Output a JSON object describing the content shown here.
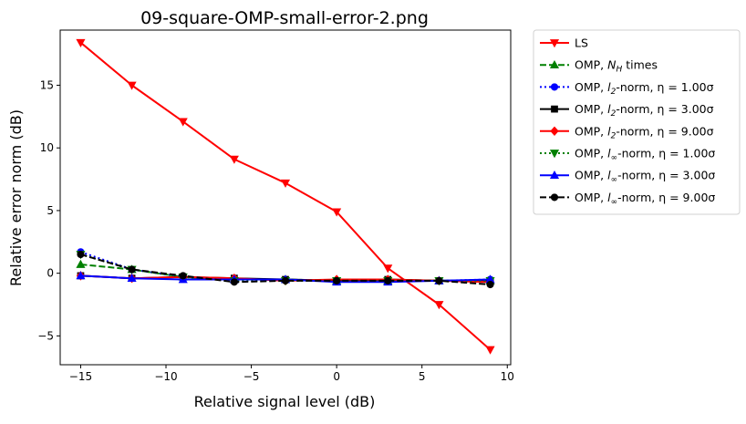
{
  "chart_data": {
    "type": "line",
    "title": "09-square-OMP-small-error-2.png",
    "xlabel": "Relative signal level (dB)",
    "ylabel": "Relative error norm (dB)",
    "xlim": [
      -16.2,
      10.2
    ],
    "ylim": [
      -7.3,
      19.4
    ],
    "xticks": [
      -15,
      -10,
      -5,
      0,
      5,
      10
    ],
    "yticks": [
      -5,
      0,
      5,
      10,
      15
    ],
    "xtick_labels": [
      "−15",
      "−10",
      "−5",
      "0",
      "5",
      "10"
    ],
    "ytick_labels": [
      "−5",
      "0",
      "5",
      "10",
      "15"
    ],
    "grid": false,
    "legend_position": "outside-right",
    "x": [
      -15,
      -12,
      -9,
      -6,
      -3,
      0,
      3,
      6,
      9
    ],
    "series": [
      {
        "name": "LS",
        "color": "#ff0000",
        "dash": "solid",
        "marker": "triangle-down",
        "values": [
          18.4,
          15.0,
          12.1,
          9.1,
          7.2,
          4.9,
          0.4,
          -2.5,
          -6.1
        ]
      },
      {
        "name": "OMP, N_H times",
        "color": "#008000",
        "dash": "dashed",
        "marker": "triangle-up",
        "values": [
          0.7,
          0.3,
          -0.3,
          -0.5,
          -0.5,
          -0.6,
          -0.6,
          -0.6,
          -0.6
        ]
      },
      {
        "name": "OMP, l_2-norm, η = 1.00σ",
        "color": "#0000ff",
        "dash": "dotted",
        "marker": "circle",
        "values": [
          1.7,
          0.3,
          -0.3,
          -0.5,
          -0.5,
          -0.6,
          -0.6,
          -0.6,
          -0.5
        ]
      },
      {
        "name": "OMP, l_2-norm, η = 3.00σ",
        "color": "#000000",
        "dash": "solid",
        "marker": "square",
        "values": [
          -0.2,
          -0.4,
          -0.3,
          -0.4,
          -0.5,
          -0.6,
          -0.5,
          -0.6,
          -0.6
        ]
      },
      {
        "name": "OMP, l_2-norm, η = 9.00σ",
        "color": "#ff0000",
        "dash": "solid",
        "marker": "diamond",
        "values": [
          -0.2,
          -0.4,
          -0.3,
          -0.4,
          -0.6,
          -0.5,
          -0.5,
          -0.6,
          -0.7
        ]
      },
      {
        "name": "OMP, l_∞-norm, η = 1.00σ",
        "color": "#008000",
        "dash": "dotted",
        "marker": "triangle-down",
        "values": [
          1.5,
          0.3,
          -0.3,
          -0.6,
          -0.6,
          -0.6,
          -0.6,
          -0.6,
          -0.6
        ]
      },
      {
        "name": "OMP, l_∞-norm, η = 3.00σ",
        "color": "#0000ff",
        "dash": "solid",
        "marker": "triangle-up",
        "values": [
          -0.2,
          -0.4,
          -0.5,
          -0.5,
          -0.5,
          -0.7,
          -0.7,
          -0.6,
          -0.5
        ]
      },
      {
        "name": "OMP, l_∞-norm, η = 9.00σ",
        "color": "#000000",
        "dash": "dashed",
        "marker": "circle",
        "values": [
          1.5,
          0.3,
          -0.2,
          -0.7,
          -0.6,
          -0.6,
          -0.6,
          -0.6,
          -0.9
        ]
      }
    ],
    "legend": [
      {
        "prefix": "OMP, ",
        "main": "N",
        "sub": "H",
        "suffix": " times"
      },
      {
        "prefix": "OMP, ",
        "main": "l",
        "sub": "2",
        "suffix": "-norm, η = 1.00σ"
      },
      {
        "prefix": "OMP, ",
        "main": "l",
        "sub": "2",
        "suffix": "-norm, η = 3.00σ"
      },
      {
        "prefix": "OMP, ",
        "main": "l",
        "sub": "2",
        "suffix": "-norm, η = 9.00σ"
      },
      {
        "prefix": "OMP, ",
        "main": "l",
        "sub": "∞",
        "suffix": "-norm, η = 1.00σ"
      },
      {
        "prefix": "OMP, ",
        "main": "l",
        "sub": "∞",
        "suffix": "-norm, η = 3.00σ"
      },
      {
        "prefix": "OMP, ",
        "main": "l",
        "sub": "∞",
        "suffix": "-norm, η = 9.00σ"
      }
    ]
  }
}
